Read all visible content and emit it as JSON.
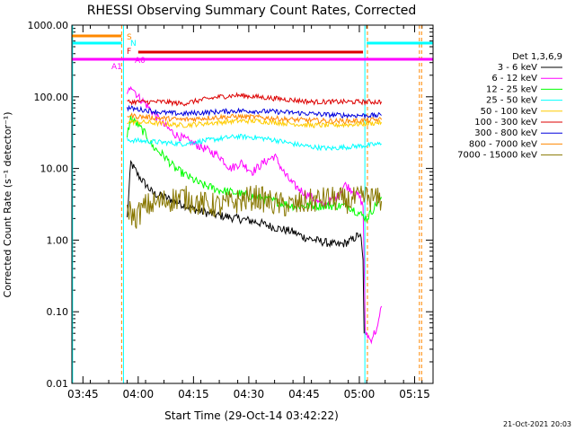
{
  "chart_data": {
    "type": "line",
    "title": "RHESSI Observing Summary Count Rates, Corrected",
    "xlabel": "Start Time (29-Oct-14 03:42:22)",
    "ylabel": "Corrected Count Rate (s⁻¹ detector⁻¹)",
    "footer": "21-Oct-2021 20:03",
    "y_scale": "log",
    "ylim": [
      0.01,
      1000
    ],
    "xlim_minutes_since_0342": [
      0,
      98
    ],
    "y_ticks": [
      "0.01",
      "0.10",
      "1.00",
      "10.00",
      "100.00",
      "1000.00"
    ],
    "x_ticks": [
      {
        "label": "03:45",
        "t": 3
      },
      {
        "label": "04:00",
        "t": 18
      },
      {
        "label": "04:15",
        "t": 33
      },
      {
        "label": "04:30",
        "t": 48
      },
      {
        "label": "04:45",
        "t": 63
      },
      {
        "label": "05:00",
        "t": 78
      },
      {
        "label": "05:15",
        "t": 93
      }
    ],
    "legend_title": "Det 1,3,6,9",
    "legend_position": "right",
    "series": [
      {
        "name": "3 - 6 keV",
        "color": "#000000",
        "t": [
          15,
          16,
          18,
          20,
          22,
          25,
          28,
          31,
          35,
          40,
          45,
          50,
          55,
          60,
          63,
          66,
          70,
          72,
          74,
          76,
          77,
          78,
          78.5,
          79,
          79.3
        ],
        "y": [
          2,
          12,
          8,
          6,
          4.5,
          4,
          3.5,
          3,
          2.5,
          2.2,
          2,
          1.8,
          1.5,
          1.3,
          1.1,
          1,
          0.9,
          0.85,
          0.9,
          1,
          1.1,
          1.2,
          1,
          0.5,
          0.05
        ]
      },
      {
        "name": "6 - 12 keV",
        "color": "#ff00ff",
        "t": [
          15,
          16,
          18,
          20,
          22,
          25,
          28,
          31,
          35,
          40,
          43,
          46,
          49,
          52,
          55,
          58,
          60,
          62,
          65,
          68,
          70,
          72,
          74,
          76,
          78,
          79,
          79.3,
          79.6,
          80,
          81,
          82,
          83,
          84
        ],
        "y": [
          100,
          150,
          100,
          80,
          60,
          40,
          30,
          25,
          20,
          15,
          10,
          12,
          9,
          12,
          15,
          8,
          6,
          5,
          4,
          3,
          3.5,
          4,
          6,
          5,
          4,
          3,
          0.5,
          0.05,
          0.05,
          0.04,
          0.05,
          0.06,
          0.12
        ]
      },
      {
        "name": "12 - 25 keV",
        "color": "#00ff00",
        "t": [
          15,
          16,
          18,
          20,
          22,
          25,
          28,
          31,
          35,
          40,
          45,
          50,
          55,
          60,
          65,
          70,
          75,
          80,
          84
        ],
        "y": [
          30,
          50,
          40,
          30,
          20,
          15,
          10,
          8,
          6,
          5,
          4.5,
          4,
          3.5,
          3,
          3,
          3,
          3,
          2,
          4
        ]
      },
      {
        "name": "25 - 50 keV",
        "color": "#00ffff",
        "t": [
          15,
          20,
          25,
          30,
          35,
          40,
          45,
          50,
          55,
          60,
          65,
          70,
          75,
          80,
          84
        ],
        "y": [
          25,
          24,
          23,
          22,
          24,
          26,
          28,
          27,
          25,
          22,
          20,
          19,
          20,
          21,
          22
        ]
      },
      {
        "name": "50 - 100 keV",
        "color": "#ffcc00",
        "t": [
          15,
          20,
          25,
          30,
          35,
          40,
          45,
          50,
          55,
          60,
          65,
          70,
          75,
          80,
          84
        ],
        "y": [
          45,
          44,
          42,
          40,
          42,
          44,
          46,
          46,
          44,
          42,
          40,
          40,
          41,
          42,
          44
        ]
      },
      {
        "name": "100 - 300 keV",
        "color": "#dd0000",
        "t": [
          15,
          20,
          25,
          30,
          35,
          40,
          45,
          50,
          55,
          60,
          65,
          70,
          75,
          80,
          84
        ],
        "y": [
          85,
          85,
          85,
          80,
          90,
          100,
          105,
          100,
          95,
          90,
          85,
          85,
          85,
          85,
          85
        ]
      },
      {
        "name": "300 - 800 keV",
        "color": "#0000dd",
        "t": [
          15,
          20,
          25,
          30,
          35,
          40,
          45,
          50,
          55,
          60,
          65,
          70,
          75,
          80,
          84
        ],
        "y": [
          70,
          65,
          60,
          58,
          60,
          62,
          64,
          63,
          62,
          60,
          58,
          56,
          55,
          55,
          55
        ]
      },
      {
        "name": "800 - 7000 keV",
        "color": "#ff8800",
        "t": [
          15,
          20,
          25,
          30,
          35,
          40,
          45,
          50,
          55,
          60,
          65,
          70,
          75,
          80,
          84
        ],
        "y": [
          55,
          52,
          50,
          48,
          50,
          52,
          53,
          52,
          50,
          48,
          47,
          46,
          46,
          47,
          48
        ]
      },
      {
        "name": "7000 - 15000 keV",
        "color": "#887700",
        "t": [
          15,
          17,
          20,
          25,
          30,
          35,
          40,
          45,
          50,
          55,
          60,
          65,
          70,
          75,
          80,
          84
        ],
        "y": [
          3,
          2,
          3,
          3.5,
          4,
          3.2,
          3,
          3.5,
          4,
          3.2,
          3,
          3.5,
          3.8,
          3.5,
          4,
          3.5
        ]
      }
    ],
    "flags": [
      {
        "label": "S",
        "color": "#ff8800",
        "t_start": 0,
        "t_end": 13.5
      },
      {
        "label": "N",
        "color": "#00ffff",
        "t_start": 0,
        "t_end": 13.5,
        "t_start2": 80,
        "t_end2": 98
      },
      {
        "label": "F",
        "color": "#dd0000",
        "t_start": 18,
        "t_end": 79
      },
      {
        "label": "A0",
        "color": "#ff00ff",
        "t_start": 18,
        "t_end": 32
      },
      {
        "label": "A1",
        "color": "#ff00ff",
        "t_start": 0,
        "t_end": 98
      }
    ]
  }
}
